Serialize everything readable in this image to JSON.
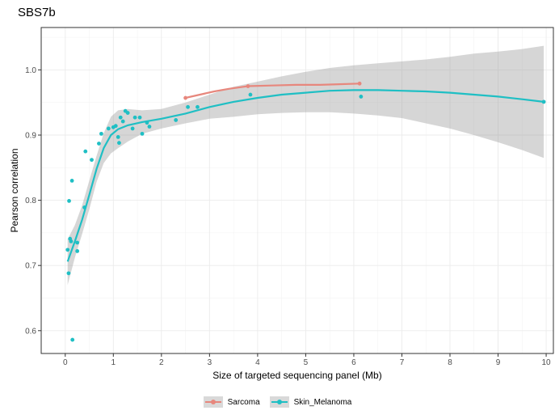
{
  "chart_data": {
    "type": "scatter",
    "title": "SBS7b",
    "xlabel": "Size of targeted sequencing panel (Mb)",
    "ylabel": "Pearson correlation",
    "xlim": [
      -0.5,
      10.15
    ],
    "ylim": [
      0.565,
      1.065
    ],
    "x_ticks": [
      0,
      1,
      2,
      3,
      4,
      5,
      6,
      7,
      8,
      9,
      10
    ],
    "y_ticks": [
      0.6,
      0.7,
      0.8,
      0.9,
      1.0
    ],
    "y_tick_labels": [
      "0.6",
      "0.7",
      "0.8",
      "0.9",
      "1.0"
    ],
    "grid": true,
    "legend_position": "bottom",
    "series": [
      {
        "name": "Sarcoma",
        "color": "#e7877d",
        "points": [
          [
            2.5,
            0.957
          ],
          [
            3.8,
            0.975
          ],
          [
            6.12,
            0.979
          ]
        ],
        "smooth": [
          [
            2.5,
            0.957
          ],
          [
            2.8,
            0.962
          ],
          [
            3.1,
            0.967
          ],
          [
            3.4,
            0.971
          ],
          [
            3.8,
            0.975
          ],
          [
            4.3,
            0.976
          ],
          [
            4.8,
            0.977
          ],
          [
            5.3,
            0.977
          ],
          [
            5.7,
            0.978
          ],
          [
            6.12,
            0.979
          ]
        ]
      },
      {
        "name": "Skin_Melanoma",
        "color": "#1fbfc4",
        "points": [
          [
            0.05,
            0.724
          ],
          [
            0.07,
            0.688
          ],
          [
            0.08,
            0.799
          ],
          [
            0.1,
            0.741
          ],
          [
            0.12,
            0.737
          ],
          [
            0.14,
            0.83
          ],
          [
            0.15,
            0.586
          ],
          [
            0.25,
            0.735
          ],
          [
            0.25,
            0.722
          ],
          [
            0.4,
            0.789
          ],
          [
            0.42,
            0.875
          ],
          [
            0.55,
            0.862
          ],
          [
            0.7,
            0.887
          ],
          [
            0.75,
            0.902
          ],
          [
            0.9,
            0.91
          ],
          [
            1.0,
            0.912
          ],
          [
            1.05,
            0.914
          ],
          [
            1.1,
            0.897
          ],
          [
            1.12,
            0.888
          ],
          [
            1.15,
            0.927
          ],
          [
            1.2,
            0.921
          ],
          [
            1.25,
            0.937
          ],
          [
            1.3,
            0.934
          ],
          [
            1.4,
            0.91
          ],
          [
            1.45,
            0.927
          ],
          [
            1.55,
            0.927
          ],
          [
            1.6,
            0.902
          ],
          [
            1.7,
            0.919
          ],
          [
            1.75,
            0.913
          ],
          [
            2.3,
            0.923
          ],
          [
            2.55,
            0.943
          ],
          [
            2.75,
            0.943
          ],
          [
            3.85,
            0.962
          ],
          [
            6.15,
            0.959
          ],
          [
            9.95,
            0.951
          ]
        ],
        "smooth": [
          [
            0.05,
            0.706
          ],
          [
            0.2,
            0.737
          ],
          [
            0.35,
            0.77
          ],
          [
            0.5,
            0.808
          ],
          [
            0.65,
            0.848
          ],
          [
            0.8,
            0.88
          ],
          [
            0.95,
            0.9
          ],
          [
            1.1,
            0.909
          ],
          [
            1.3,
            0.915
          ],
          [
            1.6,
            0.92
          ],
          [
            2.0,
            0.925
          ],
          [
            2.5,
            0.933
          ],
          [
            3.0,
            0.943
          ],
          [
            3.5,
            0.951
          ],
          [
            4.0,
            0.957
          ],
          [
            4.5,
            0.962
          ],
          [
            5.0,
            0.965
          ],
          [
            5.5,
            0.968
          ],
          [
            6.0,
            0.969
          ],
          [
            6.5,
            0.969
          ],
          [
            7.0,
            0.968
          ],
          [
            7.5,
            0.967
          ],
          [
            8.0,
            0.965
          ],
          [
            8.5,
            0.962
          ],
          [
            9.0,
            0.959
          ],
          [
            9.5,
            0.955
          ],
          [
            9.95,
            0.951
          ]
        ],
        "band_upper": [
          [
            0.05,
            0.74
          ],
          [
            0.2,
            0.762
          ],
          [
            0.35,
            0.792
          ],
          [
            0.5,
            0.83
          ],
          [
            0.65,
            0.868
          ],
          [
            0.8,
            0.903
          ],
          [
            0.95,
            0.928
          ],
          [
            1.1,
            0.938
          ],
          [
            1.3,
            0.94
          ],
          [
            1.6,
            0.938
          ],
          [
            2.0,
            0.94
          ],
          [
            2.5,
            0.95
          ],
          [
            3.0,
            0.962
          ],
          [
            3.5,
            0.974
          ],
          [
            4.0,
            0.982
          ],
          [
            4.5,
            0.99
          ],
          [
            5.0,
            0.997
          ],
          [
            5.5,
            1.003
          ],
          [
            6.0,
            1.007
          ],
          [
            6.5,
            1.01
          ],
          [
            7.0,
            1.013
          ],
          [
            7.5,
            1.016
          ],
          [
            8.0,
            1.02
          ],
          [
            8.5,
            1.025
          ],
          [
            9.0,
            1.028
          ],
          [
            9.5,
            1.032
          ],
          [
            9.95,
            1.037
          ]
        ],
        "band_lower": [
          [
            0.05,
            0.67
          ],
          [
            0.2,
            0.712
          ],
          [
            0.35,
            0.748
          ],
          [
            0.5,
            0.786
          ],
          [
            0.65,
            0.828
          ],
          [
            0.8,
            0.857
          ],
          [
            0.95,
            0.872
          ],
          [
            1.1,
            0.88
          ],
          [
            1.3,
            0.89
          ],
          [
            1.6,
            0.902
          ],
          [
            2.0,
            0.91
          ],
          [
            2.5,
            0.918
          ],
          [
            3.0,
            0.925
          ],
          [
            3.5,
            0.928
          ],
          [
            4.0,
            0.932
          ],
          [
            4.5,
            0.934
          ],
          [
            5.0,
            0.935
          ],
          [
            5.5,
            0.935
          ],
          [
            6.0,
            0.933
          ],
          [
            6.5,
            0.93
          ],
          [
            7.0,
            0.926
          ],
          [
            7.5,
            0.918
          ],
          [
            8.0,
            0.91
          ],
          [
            8.5,
            0.9
          ],
          [
            9.0,
            0.889
          ],
          [
            9.5,
            0.877
          ],
          [
            9.95,
            0.865
          ]
        ]
      }
    ],
    "legend": [
      "Sarcoma",
      "Skin_Melanoma"
    ]
  }
}
